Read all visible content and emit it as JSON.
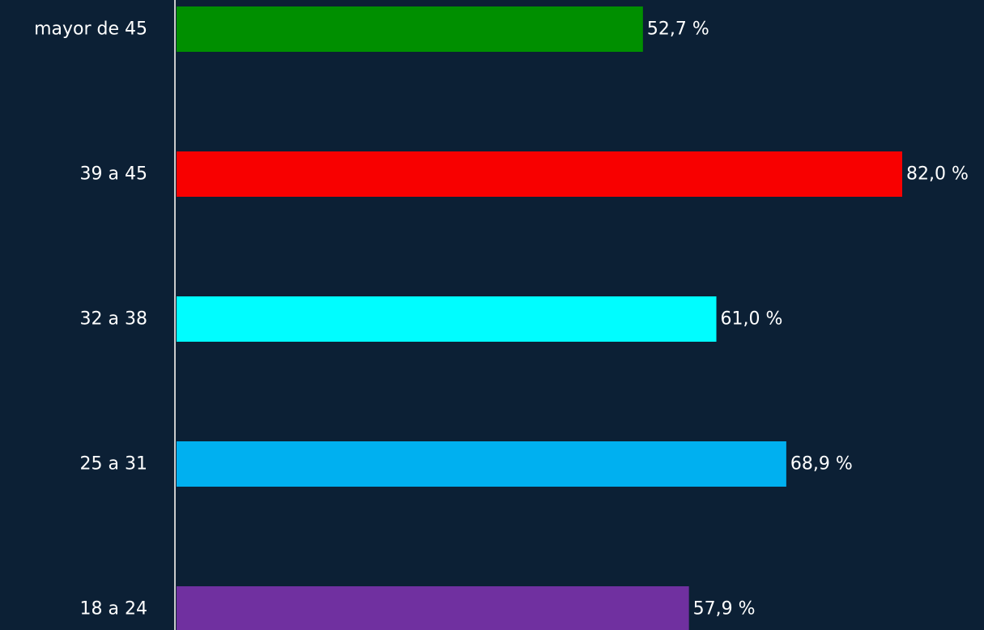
{
  "chart_data": {
    "type": "bar",
    "orientation": "horizontal",
    "categories": [
      "mayor de 45",
      "39 a 45",
      "32 a 38",
      "25 a 31",
      "18 a 24"
    ],
    "values": [
      52.7,
      82.0,
      61.0,
      68.9,
      57.9
    ],
    "value_labels": [
      "52,7 %",
      "82,0 %",
      "61,0 %",
      "68,9 %",
      "57,9 %"
    ],
    "colors": [
      "#008f00",
      "#f80000",
      "#00fdff",
      "#00b0f0",
      "#7030a0"
    ],
    "background": "#0c2035",
    "axis_color": "#cccccc",
    "title": "",
    "xlabel": "",
    "ylabel": "",
    "xlim": [
      0,
      82
    ],
    "grid": false,
    "legend": "none"
  }
}
